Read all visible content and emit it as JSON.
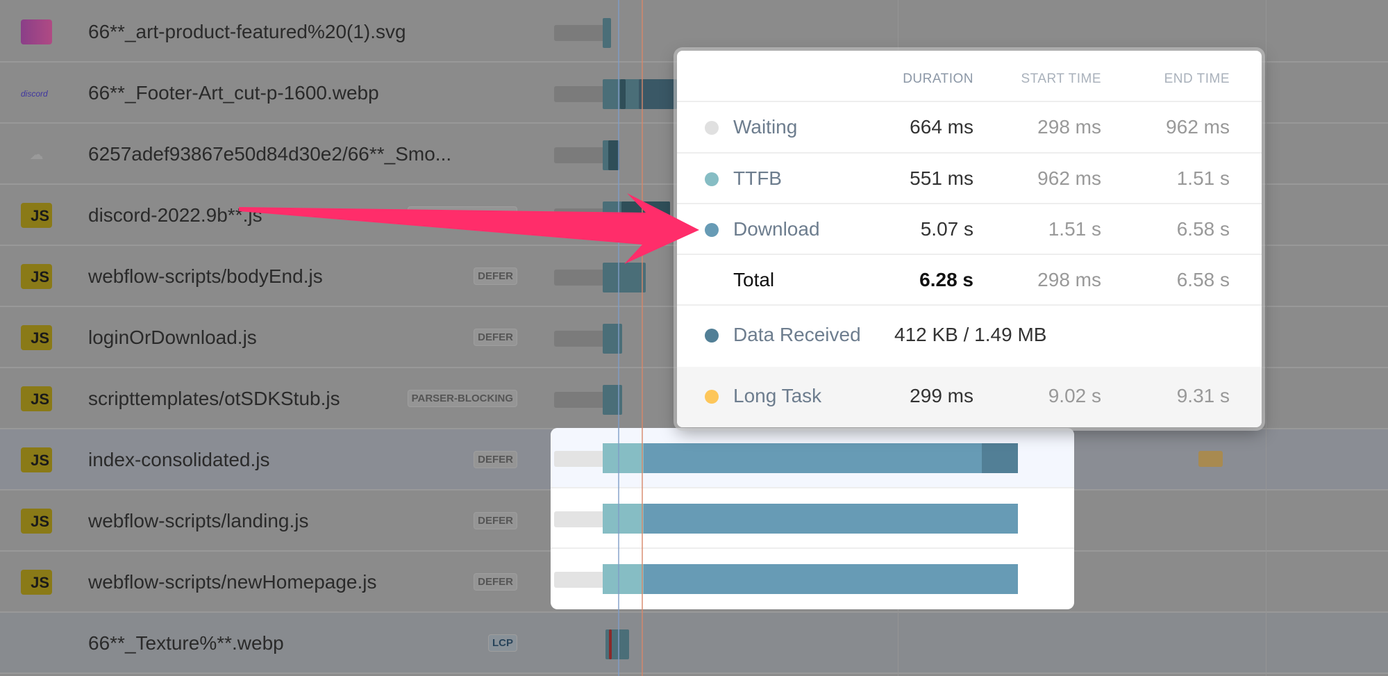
{
  "rows": [
    {
      "name": "66**_art-product-featured%20(1).svg",
      "icon": "svg",
      "badge": ""
    },
    {
      "name": "66**_Footer-Art_cut-p-1600.webp",
      "icon": "discord-art",
      "icon_text": "discord",
      "badge": ""
    },
    {
      "name": "6257adef93867e50d84d30e2/66**_Smo...",
      "icon": "image",
      "badge": ""
    },
    {
      "name": "discord-2022.9b**.js",
      "icon": "js",
      "badge": "PARSER-BLOCKING"
    },
    {
      "name": "webflow-scripts/bodyEnd.js",
      "icon": "js",
      "badge": "DEFER"
    },
    {
      "name": "loginOrDownload.js",
      "icon": "js",
      "badge": "DEFER"
    },
    {
      "name": "scripttemplates/otSDKStub.js",
      "icon": "js",
      "badge": "PARSER-BLOCKING"
    },
    {
      "name": "index-consolidated.js",
      "icon": "js",
      "badge": "DEFER"
    },
    {
      "name": "webflow-scripts/landing.js",
      "icon": "js",
      "badge": "DEFER"
    },
    {
      "name": "webflow-scripts/newHomepage.js",
      "icon": "js",
      "badge": "DEFER"
    },
    {
      "name": "66**_Texture%**.webp",
      "icon": "none",
      "badge": "LCP"
    }
  ],
  "js_icon_label": "JS",
  "popup": {
    "headers": {
      "duration": "DURATION",
      "start": "START TIME",
      "end": "END TIME"
    },
    "waiting": {
      "label": "Waiting",
      "duration": "664 ms",
      "start": "298 ms",
      "end": "962 ms",
      "color": "#e0e0e0"
    },
    "ttfb": {
      "label": "TTFB",
      "duration": "551 ms",
      "start": "962 ms",
      "end": "1.51 s",
      "color": "#86bdc4"
    },
    "download": {
      "label": "Download",
      "duration": "5.07 s",
      "start": "1.51 s",
      "end": "6.58 s",
      "color": "#679bb5"
    },
    "total": {
      "label": "Total",
      "duration": "6.28 s",
      "start": "298 ms",
      "end": "6.58 s"
    },
    "data_received": {
      "label": "Data Received",
      "value": "412 KB / 1.49 MB",
      "color": "#527f96"
    },
    "long_task": {
      "label": "Long Task",
      "duration": "299 ms",
      "start": "9.02 s",
      "end": "9.31 s",
      "color": "#fdc65a"
    }
  },
  "colors": {
    "arrow": "#ff2d6a",
    "start_line": "#7f9cc8",
    "lcp_line": "#d7876a"
  }
}
